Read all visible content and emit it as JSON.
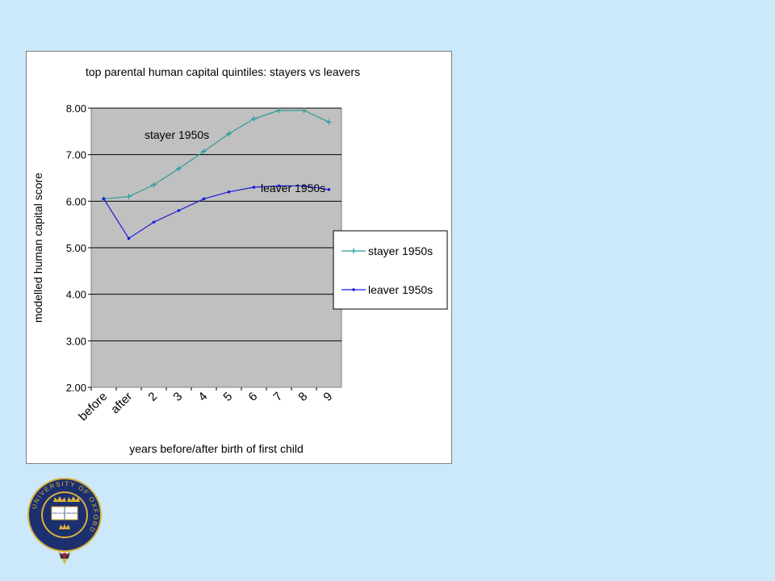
{
  "chart_data": {
    "type": "line",
    "title": "top parental human capital quintiles: stayers vs leavers",
    "xlabel": "years before/after birth of first child",
    "ylabel": "modelled human capital score",
    "categories": [
      "before",
      "after",
      "2",
      "3",
      "4",
      "5",
      "6",
      "7",
      "8",
      "9"
    ],
    "ylim": [
      2.0,
      8.0
    ],
    "yticks": [
      "2.00",
      "3.00",
      "4.00",
      "5.00",
      "6.00",
      "7.00",
      "8.00"
    ],
    "grid": "horizontal",
    "plot_background": "#c0c0c0",
    "legend_position": "right",
    "series": [
      {
        "name": "stayer 1950s",
        "color": "#2e9b9b",
        "marker": "plus",
        "values": [
          6.05,
          6.1,
          6.35,
          6.7,
          7.07,
          7.45,
          7.77,
          7.95,
          7.95,
          7.7
        ]
      },
      {
        "name": "leaver 1950s",
        "color": "#1a1adf",
        "marker": "dot",
        "values": [
          6.05,
          5.2,
          5.55,
          5.8,
          6.05,
          6.2,
          6.3,
          6.33,
          6.33,
          6.25
        ]
      }
    ],
    "annotations": [
      "stayer 1950s",
      "leaver 1950s"
    ]
  },
  "logo": {
    "ring_text": "UNIVERSITY OF OXFORD",
    "book_text": "DOMI NUS ILLU MINATIO MEA",
    "navy": "#1c2f6e",
    "gold": "#d9b23a",
    "red": "#b0202a"
  }
}
